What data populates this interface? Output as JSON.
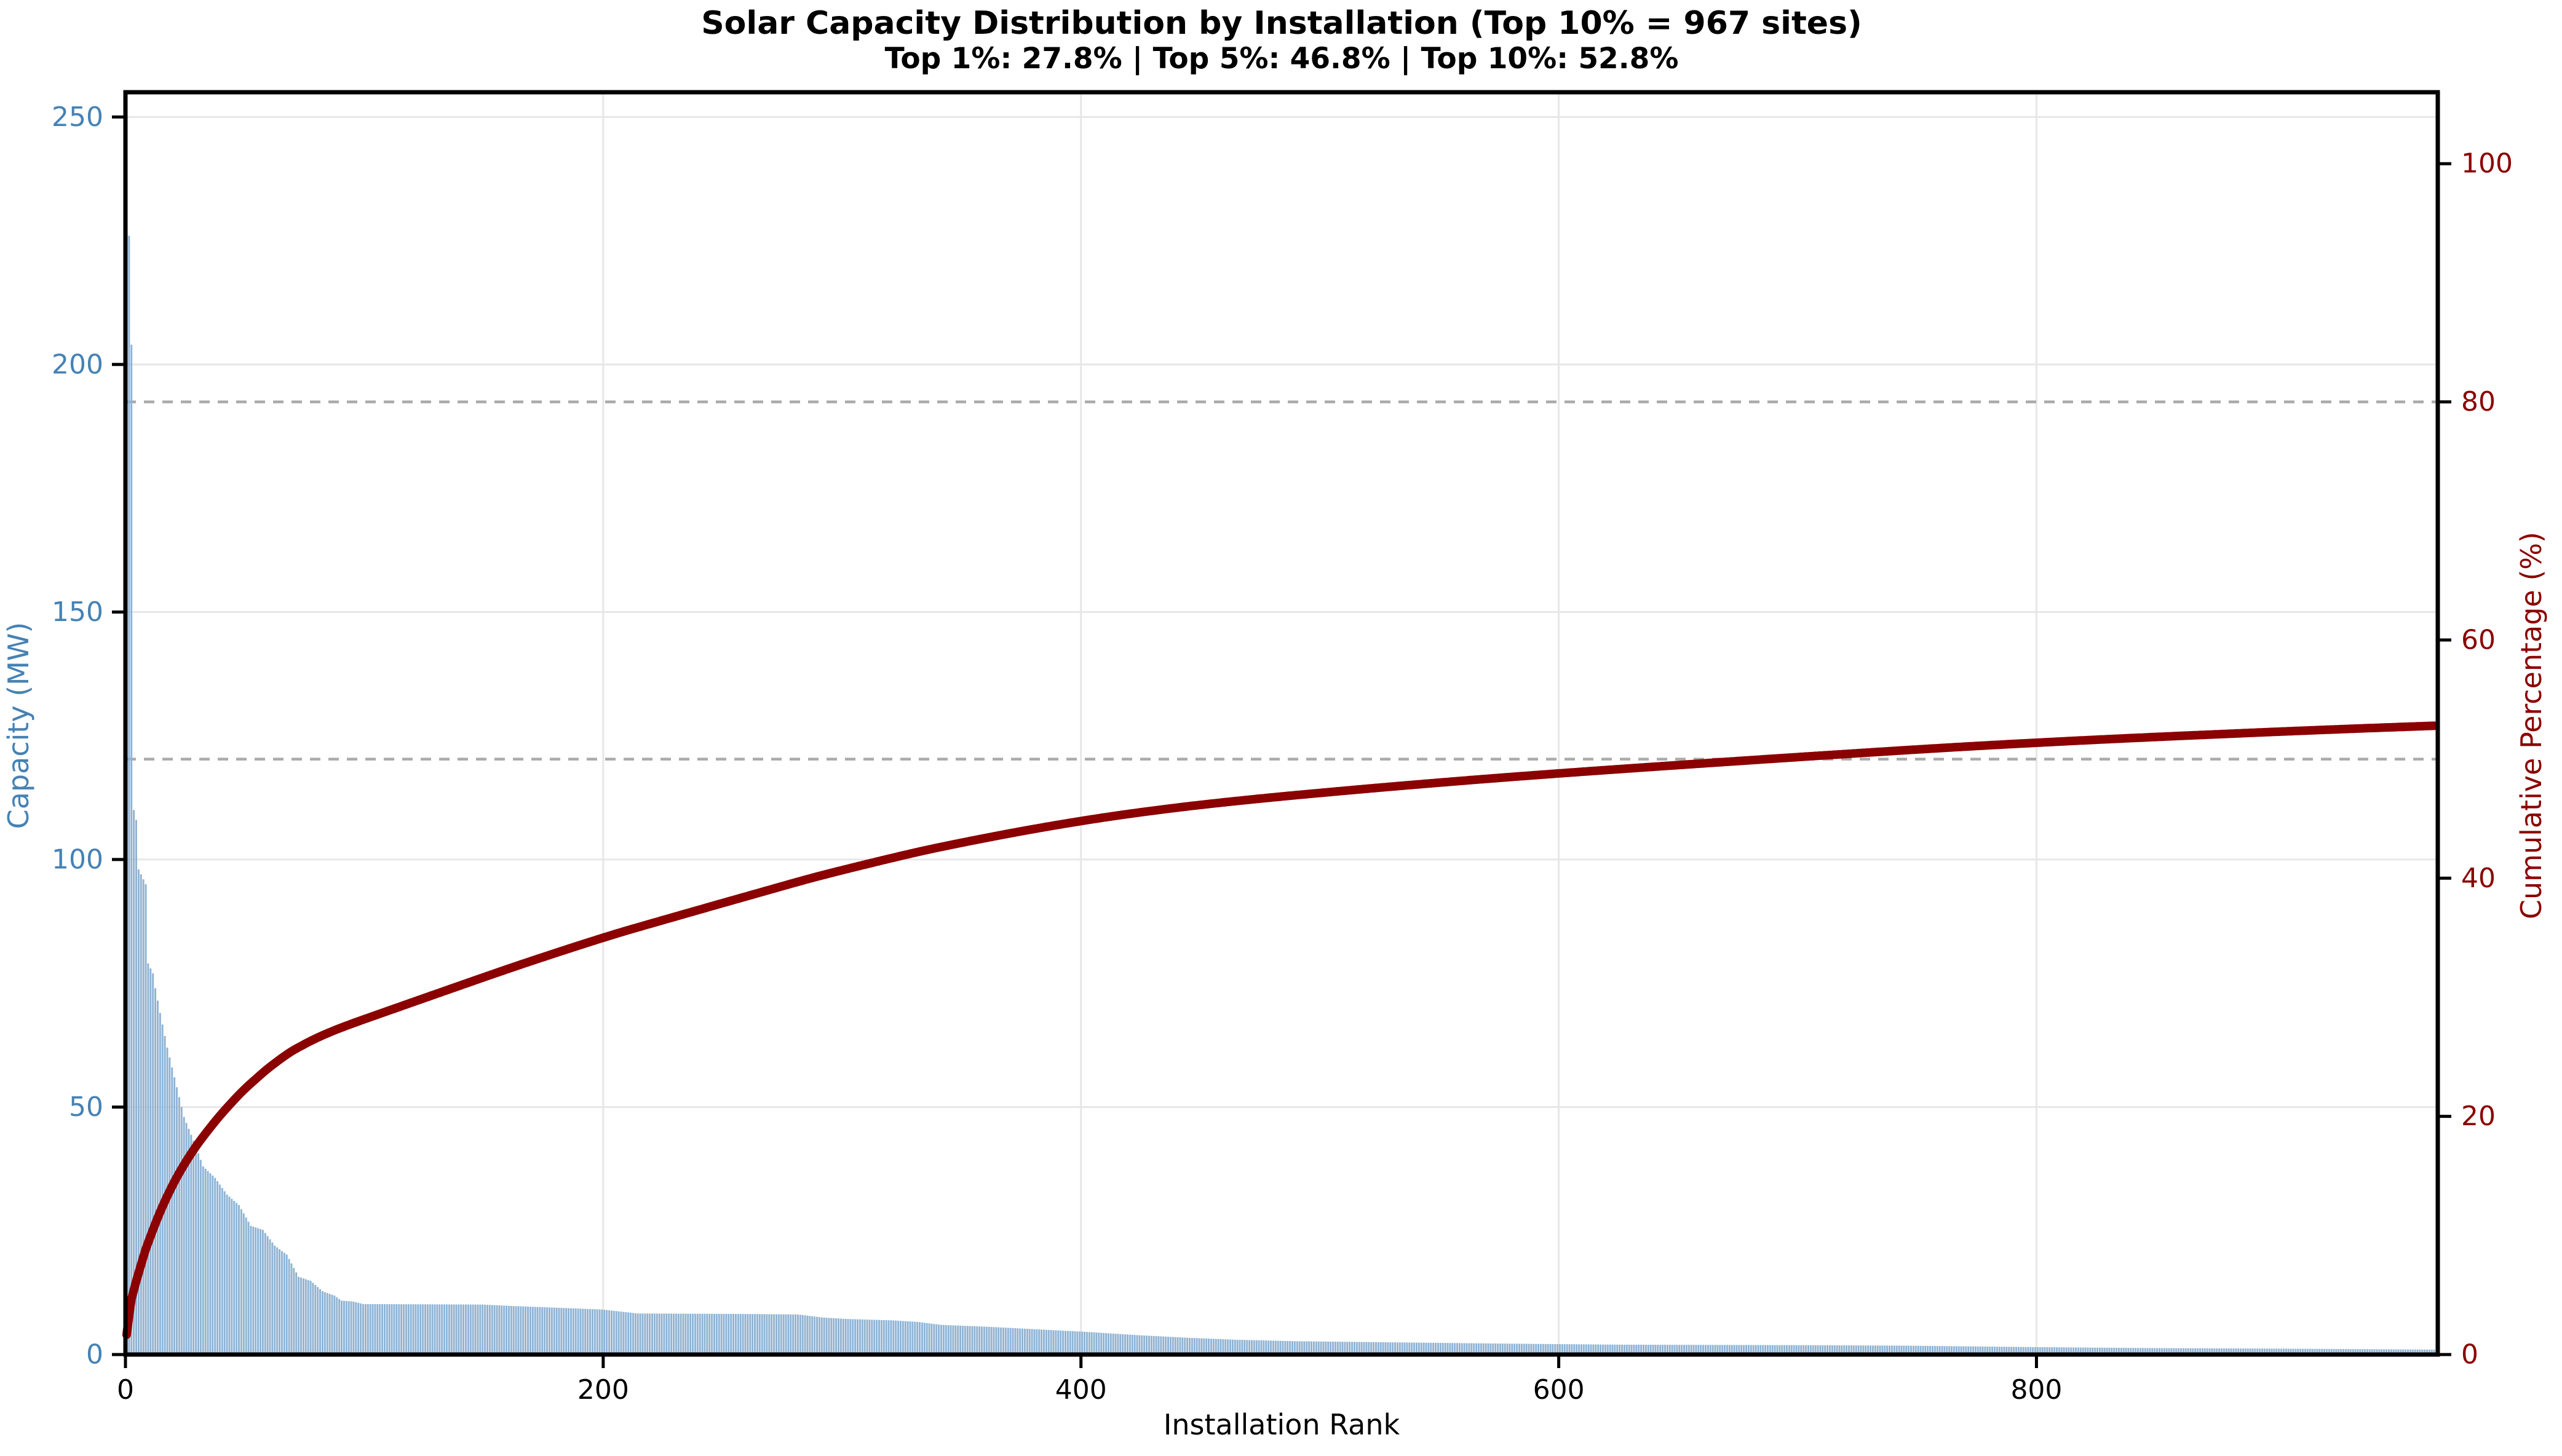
{
  "title": "Solar Capacity Distribution by Installation (Top 10% = 967 sites)",
  "subtitle": "Top 1%: 27.8% | Top 5%: 46.8% | Top 10%: 52.8%",
  "stats": {
    "top_1_pct_share": "27.8%",
    "top_5_pct_share": "46.8%",
    "top_10_pct_share": "52.8%",
    "top_10_pct_site_count": 967
  },
  "chart_data": {
    "type": "bar",
    "subtype": "pareto-bar-plus-cumulative-line",
    "title": "Solar Capacity Distribution by Installation (Top 10% = 967 sites)",
    "subtitle": "Top 1%: 27.8% | Top 5%: 46.8% | Top 10%: 52.8%",
    "xlabel": "Installation Rank",
    "ylabel_left": "Capacity (MW)",
    "ylabel_right": "Cumulative Percentage (%)",
    "n_bars": 967,
    "xlim": [
      0,
      968
    ],
    "x_ticks": [
      0,
      200,
      400,
      600,
      800
    ],
    "ylim_left": [
      0,
      255
    ],
    "y_ticks_left": [
      0,
      50,
      100,
      150,
      200,
      250
    ],
    "ylim_right": [
      0,
      106
    ],
    "y_ticks_right": [
      0,
      20,
      40,
      60,
      80,
      100
    ],
    "grid": "light solid gridlines at left-axis and x-axis ticks",
    "reference_lines_right_pct": [
      80,
      50
    ],
    "cumulative_normalized_end_pct": 52.8,
    "capacity_anchors_mw": [
      [
        1,
        240
      ],
      [
        2,
        226
      ],
      [
        3,
        204
      ],
      [
        4,
        110
      ],
      [
        5,
        108
      ],
      [
        6,
        98
      ],
      [
        7,
        97
      ],
      [
        8,
        96
      ],
      [
        9,
        95
      ],
      [
        10,
        79
      ],
      [
        11,
        78
      ],
      [
        12,
        77
      ],
      [
        13,
        74
      ],
      [
        15,
        69
      ],
      [
        18,
        62
      ],
      [
        20,
        58
      ],
      [
        25,
        48
      ],
      [
        30,
        42
      ],
      [
        33,
        38
      ],
      [
        38,
        35.7
      ],
      [
        43,
        32.3
      ],
      [
        48,
        30.2
      ],
      [
        53,
        26
      ],
      [
        58,
        25.2
      ],
      [
        63,
        22
      ],
      [
        68,
        20.2
      ],
      [
        73,
        15.7
      ],
      [
        78,
        14.9
      ],
      [
        83,
        12.8
      ],
      [
        88,
        11.9
      ],
      [
        91,
        10.9
      ],
      [
        96,
        10.7
      ],
      [
        100,
        10.2
      ],
      [
        150,
        10.1
      ],
      [
        163,
        9.8
      ],
      [
        200,
        9.1
      ],
      [
        215,
        8.3
      ],
      [
        260,
        8.2
      ],
      [
        282,
        8.1
      ],
      [
        292,
        7.5
      ],
      [
        302,
        7.2
      ],
      [
        322,
        6.9
      ],
      [
        332,
        6.6
      ],
      [
        342,
        6.0
      ],
      [
        362,
        5.6
      ],
      [
        382,
        5.1
      ],
      [
        402,
        4.6
      ],
      [
        425,
        3.9
      ],
      [
        445,
        3.4
      ],
      [
        465,
        3.0
      ],
      [
        490,
        2.7
      ],
      [
        525,
        2.5
      ],
      [
        580,
        2.2
      ],
      [
        625,
        2.0
      ],
      [
        700,
        1.9
      ],
      [
        745,
        1.8
      ],
      [
        800,
        1.5
      ],
      [
        850,
        1.3
      ],
      [
        900,
        1.2
      ],
      [
        967,
        1.0
      ]
    ],
    "cumulative_checkpoints_pct": [
      [
        1,
        1.7
      ],
      [
        97,
        27.8
      ],
      [
        200,
        34.8
      ],
      [
        400,
        44.8
      ],
      [
        484,
        46.8
      ],
      [
        600,
        48.6
      ],
      [
        800,
        51.6
      ],
      [
        967,
        52.8
      ]
    ],
    "colors": {
      "bar": "#8fb3d4",
      "cumulative_line": "#8b0000",
      "left_axis_text": "#4682b4",
      "right_axis_text": "#8b0000",
      "x_axis_text": "#000000",
      "gridline": "#e7e7e7",
      "dashed_reference": "#aaaaaa",
      "spine": "#000000",
      "background": "#ffffff"
    },
    "legend": "none"
  }
}
